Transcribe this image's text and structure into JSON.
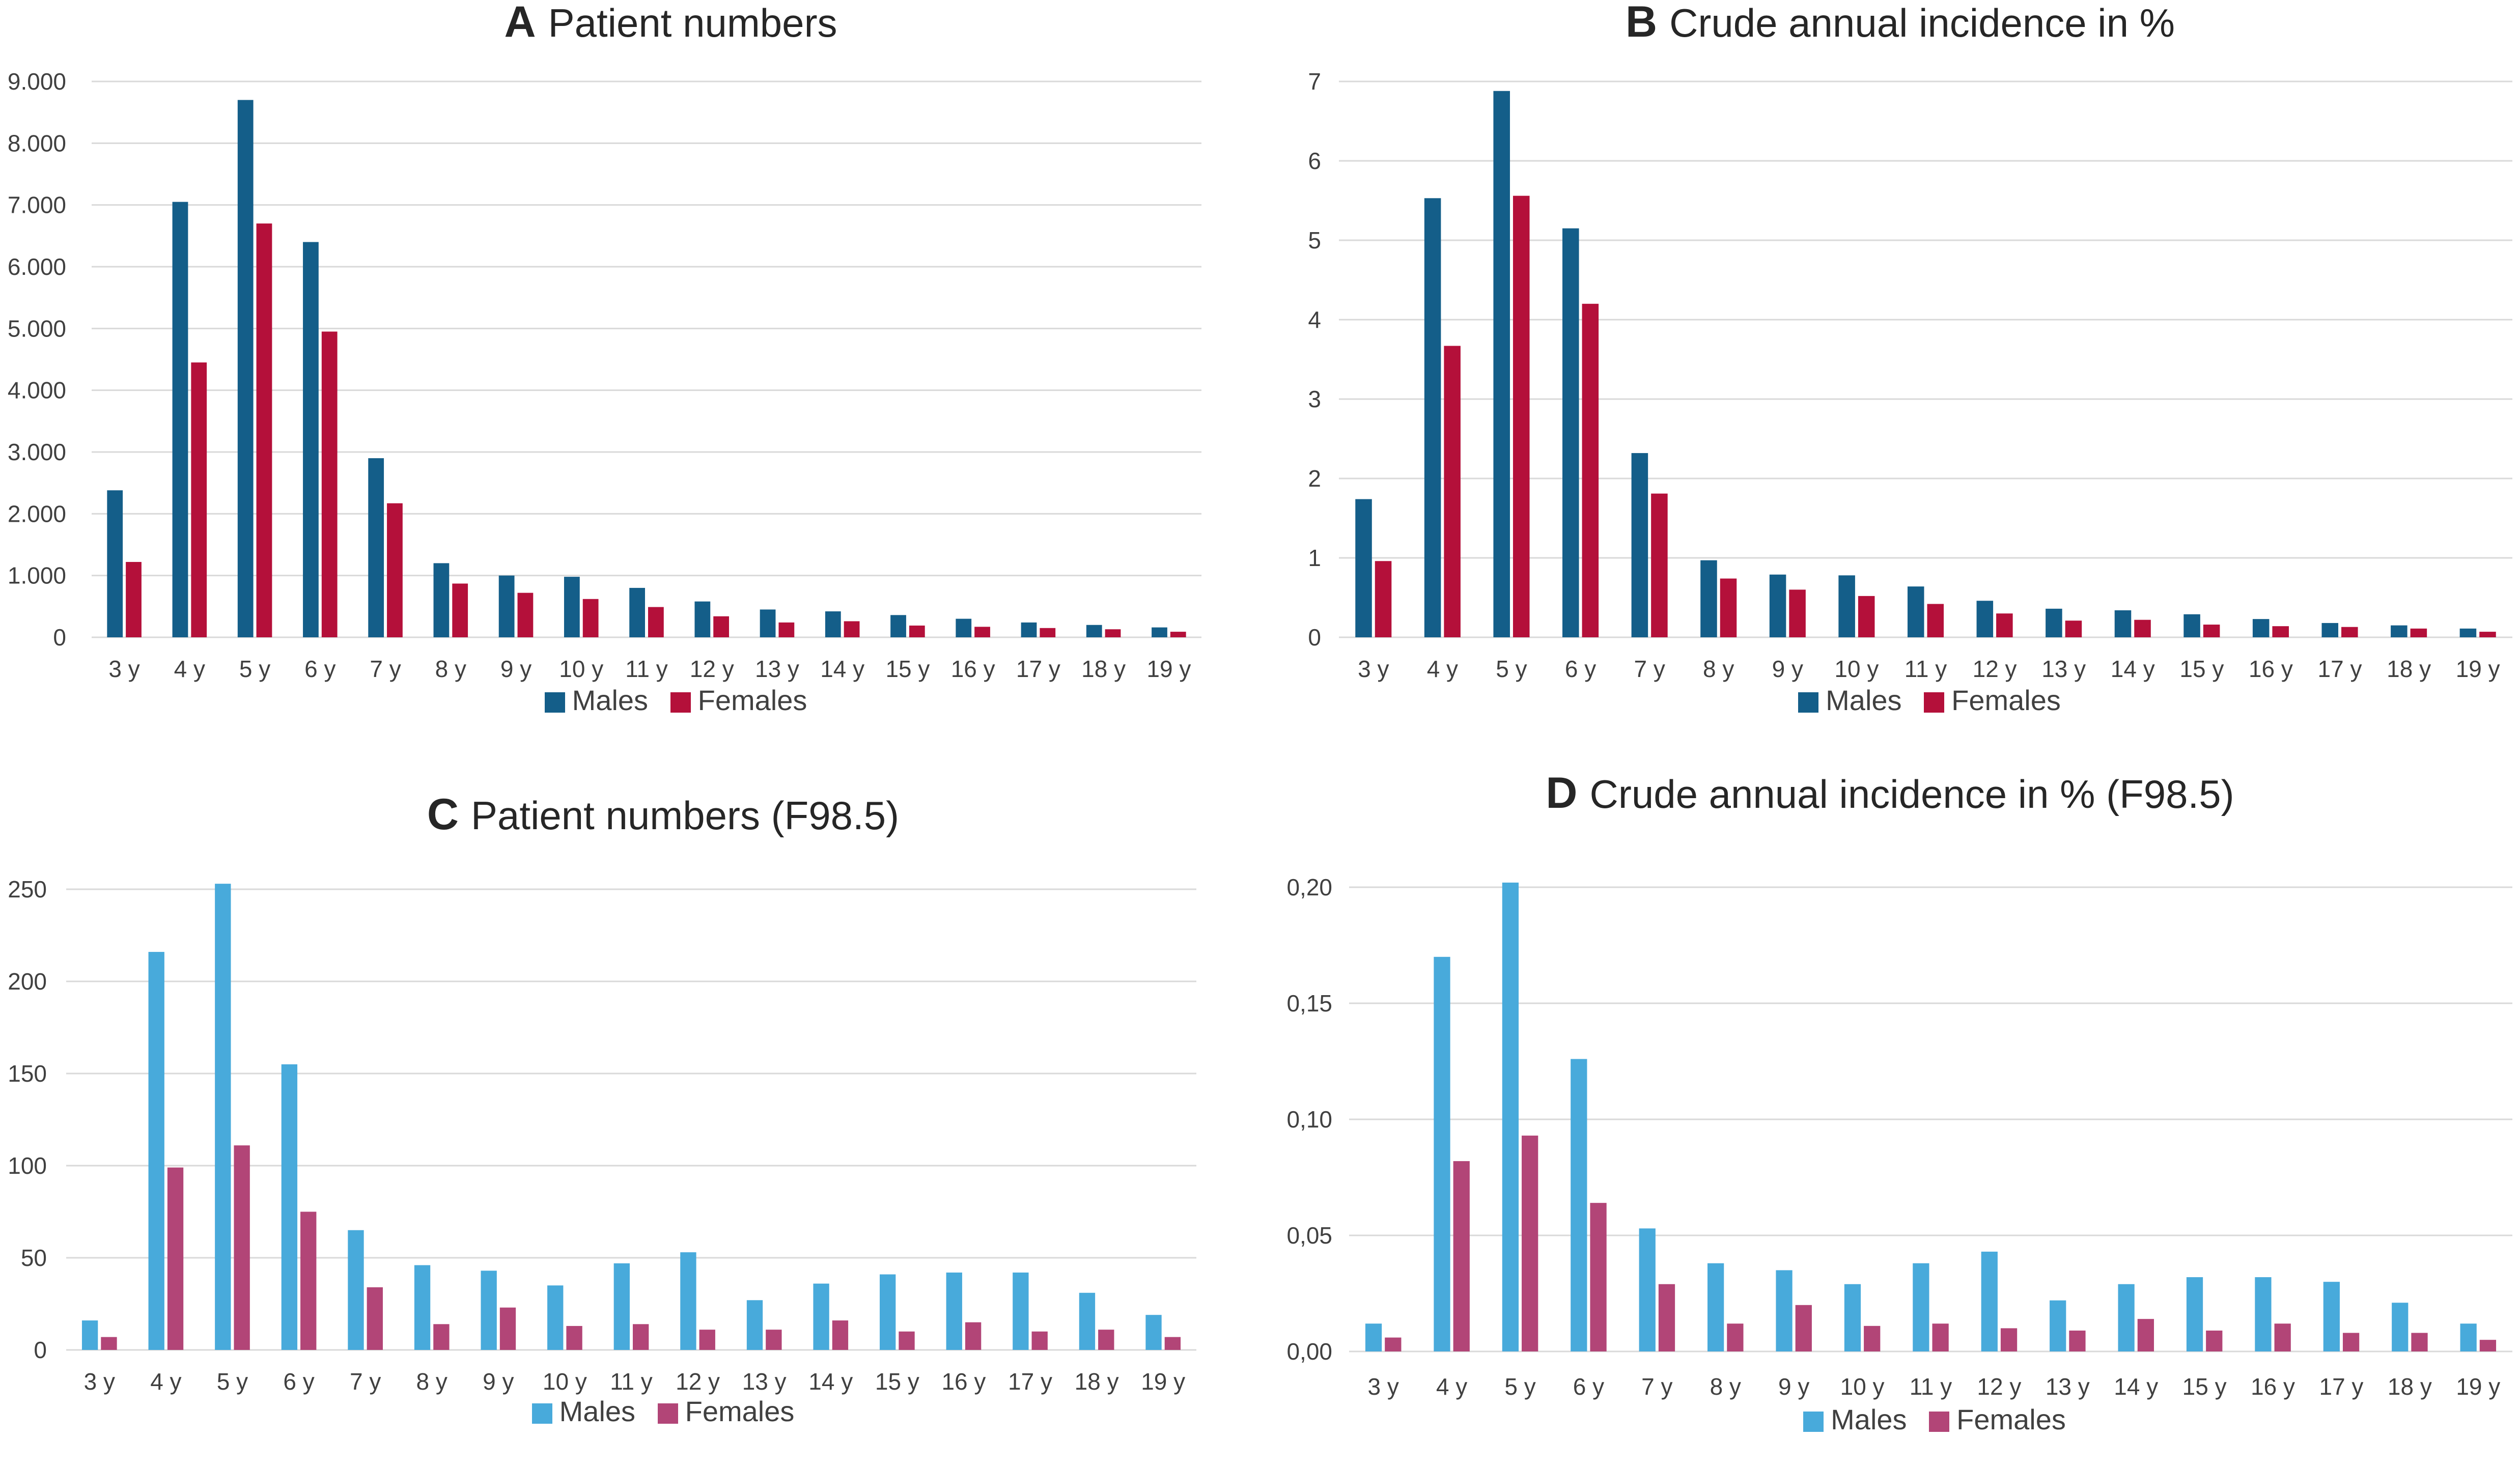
{
  "palette": {
    "males_dark": "#145E89",
    "females_dark": "#B4103A",
    "males_light": "#48AADB",
    "females_light": "#B24577",
    "grid": "#D9D9D9"
  },
  "chart_data": [
    {
      "id": "a",
      "type": "bar",
      "panel_letter": "A",
      "title": "Patient numbers",
      "categories": [
        "3 y",
        "4 y",
        "5 y",
        "6 y",
        "7 y",
        "8 y",
        "9 y",
        "10 y",
        "11 y",
        "12 y",
        "13 y",
        "14 y",
        "15 y",
        "16 y",
        "17 y",
        "18 y",
        "19 y"
      ],
      "series": [
        {
          "name": "Males",
          "color": "#145E89",
          "values": [
            2380,
            7050,
            8700,
            6400,
            2900,
            1200,
            1000,
            980,
            800,
            580,
            450,
            420,
            360,
            300,
            240,
            200,
            160
          ]
        },
        {
          "name": "Females",
          "color": "#B4103A",
          "values": [
            1220,
            4450,
            6700,
            4950,
            2170,
            870,
            720,
            620,
            490,
            340,
            240,
            260,
            190,
            170,
            150,
            130,
            90
          ]
        }
      ],
      "ylim": [
        0,
        9000
      ],
      "yticks": [
        0,
        1000,
        2000,
        3000,
        4000,
        5000,
        6000,
        7000,
        8000,
        9000
      ],
      "ytick_labels": [
        "0",
        "1.000",
        "2.000",
        "3.000",
        "4.000",
        "5.000",
        "6.000",
        "7.000",
        "8.000",
        "9.000"
      ],
      "xlabel": "",
      "ylabel": "",
      "legend": [
        "Males",
        "Females"
      ],
      "legend_position": "bottom-center",
      "grid": true
    },
    {
      "id": "b",
      "type": "bar",
      "panel_letter": "B",
      "title": "Crude annual incidence in %",
      "categories": [
        "3 y",
        "4 y",
        "5 y",
        "6 y",
        "7 y",
        "8 y",
        "9 y",
        "10 y",
        "11 y",
        "12 y",
        "13 y",
        "14 y",
        "15 y",
        "16 y",
        "17 y",
        "18 y",
        "19 y"
      ],
      "series": [
        {
          "name": "Males",
          "color": "#145E89",
          "values": [
            1.74,
            5.53,
            6.88,
            5.15,
            2.32,
            0.97,
            0.79,
            0.78,
            0.64,
            0.46,
            0.36,
            0.34,
            0.29,
            0.23,
            0.18,
            0.15,
            0.11
          ]
        },
        {
          "name": "Females",
          "color": "#B4103A",
          "values": [
            0.96,
            3.67,
            5.56,
            4.2,
            1.81,
            0.74,
            0.6,
            0.52,
            0.42,
            0.3,
            0.21,
            0.22,
            0.16,
            0.14,
            0.13,
            0.11,
            0.07
          ]
        }
      ],
      "ylim": [
        0,
        7
      ],
      "yticks": [
        0,
        1,
        2,
        3,
        4,
        5,
        6,
        7
      ],
      "ytick_labels": [
        "0",
        "1",
        "2",
        "3",
        "4",
        "5",
        "6",
        "7"
      ],
      "xlabel": "",
      "ylabel": "",
      "legend": [
        "Males",
        "Females"
      ],
      "legend_position": "bottom-center",
      "grid": true
    },
    {
      "id": "c",
      "type": "bar",
      "panel_letter": "C",
      "title": "Patient numbers (F98.5)",
      "categories": [
        "3 y",
        "4 y",
        "5 y",
        "6 y",
        "7 y",
        "8 y",
        "9 y",
        "10 y",
        "11 y",
        "12 y",
        "13 y",
        "14 y",
        "15 y",
        "16 y",
        "17 y",
        "18 y",
        "19 y"
      ],
      "series": [
        {
          "name": "Males",
          "color": "#48AADB",
          "values": [
            16,
            216,
            253,
            155,
            65,
            46,
            43,
            35,
            47,
            53,
            27,
            36,
            41,
            42,
            42,
            31,
            19
          ]
        },
        {
          "name": "Females",
          "color": "#B24577",
          "values": [
            7,
            99,
            111,
            75,
            34,
            14,
            23,
            13,
            14,
            11,
            11,
            16,
            10,
            15,
            10,
            11,
            7
          ]
        }
      ],
      "ylim": [
        0,
        250
      ],
      "yticks": [
        0,
        50,
        100,
        150,
        200,
        250
      ],
      "ytick_labels": [
        "0",
        "50",
        "100",
        "150",
        "200",
        "250"
      ],
      "xlabel": "",
      "ylabel": "",
      "legend": [
        "Males",
        "Females"
      ],
      "legend_position": "bottom-center",
      "grid": true
    },
    {
      "id": "d",
      "type": "bar",
      "panel_letter": "D",
      "title": "Crude annual incidence in % (F98.5)",
      "categories": [
        "3 y",
        "4 y",
        "5 y",
        "6 y",
        "7 y",
        "8 y",
        "9 y",
        "10 y",
        "11 y",
        "12 y",
        "13 y",
        "14 y",
        "15 y",
        "16 y",
        "17 y",
        "18 y",
        "19 y"
      ],
      "series": [
        {
          "name": "Males",
          "color": "#48AADB",
          "values": [
            0.012,
            0.17,
            0.202,
            0.126,
            0.053,
            0.038,
            0.035,
            0.029,
            0.038,
            0.043,
            0.022,
            0.029,
            0.032,
            0.032,
            0.03,
            0.021,
            0.012
          ]
        },
        {
          "name": "Females",
          "color": "#B24577",
          "values": [
            0.006,
            0.082,
            0.093,
            0.064,
            0.029,
            0.012,
            0.02,
            0.011,
            0.012,
            0.01,
            0.009,
            0.014,
            0.009,
            0.012,
            0.008,
            0.008,
            0.005
          ]
        }
      ],
      "ylim": [
        0,
        0.2
      ],
      "yticks": [
        0,
        0.05,
        0.1,
        0.15,
        0.2
      ],
      "ytick_labels": [
        "0,00",
        "0,05",
        "0,10",
        "0,15",
        "0,20"
      ],
      "xlabel": "",
      "ylabel": "",
      "legend": [
        "Males",
        "Females"
      ],
      "legend_position": "bottom-center",
      "grid": true
    }
  ]
}
